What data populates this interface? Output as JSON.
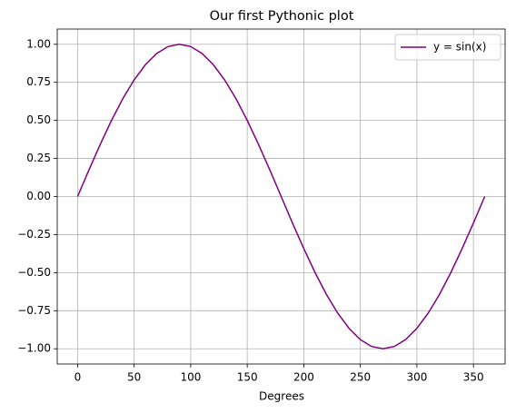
{
  "chart_data": {
    "type": "line",
    "title": "Our first Pythonic plot",
    "xlabel": "Degrees",
    "x": [
      0,
      10,
      20,
      30,
      40,
      50,
      60,
      70,
      80,
      90,
      100,
      110,
      120,
      130,
      140,
      150,
      160,
      170,
      180,
      190,
      200,
      210,
      220,
      230,
      240,
      250,
      260,
      270,
      280,
      290,
      300,
      310,
      320,
      330,
      340,
      350,
      360
    ],
    "series": [
      {
        "name": "y = sin(x)",
        "color": "#800080",
        "values": [
          0,
          0.174,
          0.342,
          0.5,
          0.643,
          0.766,
          0.866,
          0.94,
          0.985,
          1,
          0.985,
          0.94,
          0.866,
          0.766,
          0.643,
          0.5,
          0.342,
          0.174,
          0,
          -0.174,
          -0.342,
          -0.5,
          -0.643,
          -0.766,
          -0.866,
          -0.94,
          -0.985,
          -1,
          -0.985,
          -0.94,
          -0.866,
          -0.766,
          -0.643,
          -0.5,
          -0.342,
          -0.174,
          0
        ]
      }
    ],
    "xlim": [
      -18,
      378
    ],
    "ylim": [
      -1.1,
      1.1
    ],
    "xticks": [
      0,
      50,
      100,
      150,
      200,
      250,
      300,
      350
    ],
    "yticks": [
      {
        "value": -1,
        "label": "−1.00"
      },
      {
        "value": -0.75,
        "label": "−0.75"
      },
      {
        "value": -0.5,
        "label": "−0.50"
      },
      {
        "value": -0.25,
        "label": "−0.25"
      },
      {
        "value": 0,
        "label": "0.00"
      },
      {
        "value": 0.25,
        "label": "0.25"
      },
      {
        "value": 0.5,
        "label": "0.50"
      },
      {
        "value": 0.75,
        "label": "0.75"
      },
      {
        "value": 1,
        "label": "1.00"
      }
    ],
    "grid": true,
    "legend": "upper right"
  }
}
